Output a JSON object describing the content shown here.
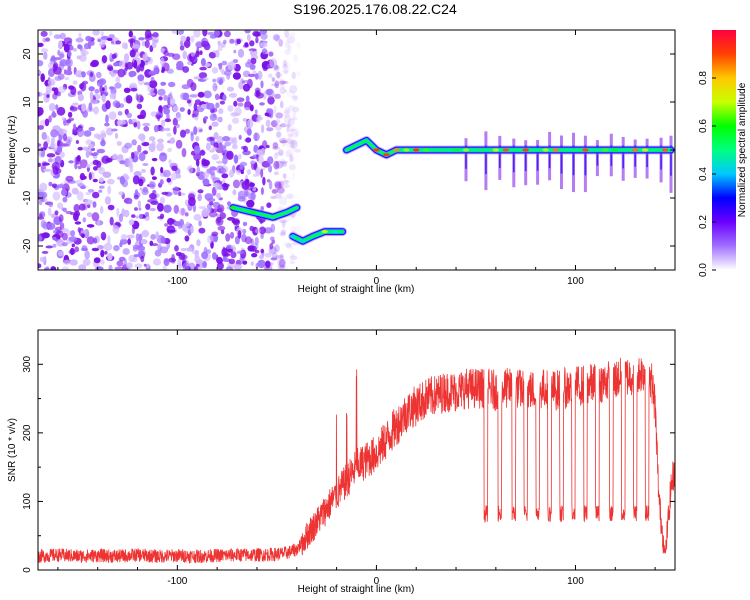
{
  "page": {
    "title": "S196.2025.176.08.22.C24"
  },
  "colorbar": {
    "label": "Normalized spectral amplitude",
    "ticks": [
      "0.0",
      "0.2",
      "0.4",
      "0.6",
      "0.8"
    ],
    "tick_values": [
      0.0,
      0.2,
      0.4,
      0.6,
      0.8
    ],
    "range": [
      0.0,
      1.0
    ],
    "colormap": [
      "#ffffff",
      "#a070ff",
      "#6a00ff",
      "#0000ff",
      "#00c8ff",
      "#00ff80",
      "#00ff00",
      "#c8ff00",
      "#ffc800",
      "#ff4000",
      "#ff0040"
    ]
  },
  "chart_data": [
    {
      "type": "heatmap",
      "title": "S196.2025.176.08.22.C24",
      "xlabel": "Height of straight line (km)",
      "ylabel": "Frequency (Hz)",
      "xlim": [
        -170,
        150
      ],
      "ylim": [
        -25,
        25
      ],
      "xticks": [
        -100,
        0,
        100
      ],
      "xtick_labels": [
        "-100",
        "0",
        "100"
      ],
      "yticks": [
        -20,
        -10,
        0,
        10,
        20
      ],
      "ytick_labels": [
        "-20",
        "-10",
        "0",
        "10",
        "20"
      ],
      "features": [
        {
          "description": "noise",
          "x_range": [
            -170,
            -47
          ],
          "y_range": [
            -25,
            25
          ],
          "amplitude": 0.15
        },
        {
          "x": [
            -72,
            -62,
            -52,
            -45,
            -40
          ],
          "y": [
            -12,
            -13,
            -14,
            -13,
            -12
          ],
          "amplitude": 0.6
        },
        {
          "x": [
            -42,
            -37,
            -32,
            -26,
            -21,
            -17
          ],
          "y": [
            -18,
            -19,
            -18,
            -17,
            -17,
            -17
          ],
          "amplitude": 0.7
        },
        {
          "x": [
            -15,
            -10,
            -5,
            0,
            5,
            10,
            15,
            20,
            25,
            30,
            35,
            40,
            45,
            50,
            55,
            60,
            65,
            70,
            75,
            80,
            85,
            90,
            95,
            100,
            105,
            110,
            115,
            120,
            125,
            130,
            135,
            140,
            145,
            148
          ],
          "y": [
            0,
            1,
            2,
            0,
            -1,
            0,
            0,
            0,
            0,
            0,
            0,
            0,
            0,
            0,
            0,
            0,
            0,
            0,
            0,
            0,
            0,
            0,
            0,
            0,
            0,
            0,
            0,
            0,
            0,
            0,
            0,
            0,
            0,
            0
          ],
          "amplitude": 0.95
        }
      ],
      "vertical_streaks_x": [
        45,
        55,
        62,
        69,
        75,
        81,
        87,
        93,
        99,
        105,
        111,
        118,
        124,
        130,
        136,
        143,
        148
      ]
    },
    {
      "type": "line",
      "xlabel": "Height of straight line (km)",
      "ylabel": "SNR (10 * v/v)",
      "xlim": [
        -170,
        150
      ],
      "ylim": [
        0,
        350
      ],
      "xticks": [
        -100,
        0,
        100
      ],
      "xtick_labels": [
        "-100",
        "0",
        "100"
      ],
      "yticks": [
        0,
        100,
        200,
        300
      ],
      "ytick_labels": [
        "0",
        "100",
        "200",
        "300"
      ],
      "color": "#ee3333",
      "series": [
        {
          "x": [
            -170,
            -160,
            -150,
            -140,
            -130,
            -120,
            -110,
            -100,
            -90,
            -80,
            -70,
            -60,
            -50,
            -45,
            -40,
            -35,
            -30,
            -25,
            -20,
            -15,
            -10,
            -5,
            0,
            5,
            10,
            15,
            20,
            25,
            30,
            35,
            40,
            45,
            50,
            55,
            60,
            65,
            70,
            75,
            80,
            85,
            90,
            95,
            100,
            105,
            110,
            115,
            120,
            125,
            130,
            135,
            138,
            140,
            142,
            145,
            148,
            150
          ],
          "y": [
            20,
            22,
            20,
            21,
            20,
            22,
            20,
            21,
            20,
            21,
            22,
            22,
            23,
            25,
            30,
            50,
            70,
            90,
            110,
            130,
            150,
            160,
            170,
            190,
            210,
            230,
            240,
            250,
            255,
            260,
            260,
            265,
            265,
            265,
            262,
            265,
            265,
            262,
            262,
            265,
            262,
            265,
            268,
            270,
            272,
            275,
            278,
            282,
            285,
            290,
            280,
            240,
            100,
            20,
            120,
            150
          ],
          "drops_x": [
            55,
            62,
            69,
            75,
            81,
            87,
            93,
            99,
            105,
            111,
            118,
            124,
            130,
            136
          ],
          "drop_min": 70,
          "spikes_x": [
            -20,
            -15,
            -10
          ],
          "spike_max": 305,
          "noise_amplitude": 30
        }
      ]
    }
  ]
}
